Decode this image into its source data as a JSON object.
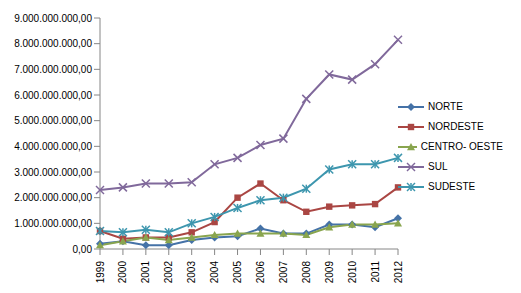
{
  "chart_data": {
    "type": "line",
    "categories": [
      "1999",
      "2000",
      "2001",
      "2002",
      "2003",
      "2004",
      "2005",
      "2006",
      "2007",
      "2008",
      "2009",
      "2010",
      "2011",
      "2012"
    ],
    "series": [
      {
        "name": "NORTE",
        "color": "#4572A7",
        "marker": "diamond",
        "values": [
          200000000,
          300000000,
          150000000,
          150000000,
          350000000,
          450000000,
          500000000,
          800000000,
          600000000,
          600000000,
          950000000,
          950000000,
          850000000,
          1200000000
        ]
      },
      {
        "name": "NORDESTE",
        "color": "#AA4643",
        "marker": "square",
        "values": [
          700000000,
          400000000,
          450000000,
          450000000,
          650000000,
          1050000000,
          2000000000,
          2550000000,
          1900000000,
          1450000000,
          1650000000,
          1700000000,
          1750000000,
          2400000000
        ]
      },
      {
        "name": "CENTRO- OESTE",
        "color": "#89A54E",
        "marker": "triangle",
        "values": [
          150000000,
          300000000,
          450000000,
          350000000,
          450000000,
          550000000,
          600000000,
          600000000,
          600000000,
          550000000,
          850000000,
          950000000,
          950000000,
          1000000000
        ]
      },
      {
        "name": "SUL",
        "color": "#80699B",
        "marker": "x",
        "values": [
          2300000000,
          2400000000,
          2550000000,
          2550000000,
          2600000000,
          3300000000,
          3550000000,
          4050000000,
          4300000000,
          5850000000,
          6800000000,
          6600000000,
          7200000000,
          8150000000
        ]
      },
      {
        "name": "SUDESTE",
        "color": "#3D96AE",
        "marker": "star",
        "values": [
          700000000,
          650000000,
          750000000,
          650000000,
          1000000000,
          1250000000,
          1600000000,
          1900000000,
          2000000000,
          2350000000,
          3100000000,
          3300000000,
          3300000000,
          3550000000
        ]
      }
    ],
    "ylim": [
      0,
      9000000000
    ],
    "yticks": [
      {
        "value": 0,
        "label": "0,00"
      },
      {
        "value": 1000000000,
        "label": "1.000.000.000,00"
      },
      {
        "value": 2000000000,
        "label": "2.000.000.000,00"
      },
      {
        "value": 3000000000,
        "label": "3.000.000.000,00"
      },
      {
        "value": 4000000000,
        "label": "4.000.000.000,00"
      },
      {
        "value": 5000000000,
        "label": "5.000.000.000,00"
      },
      {
        "value": 6000000000,
        "label": "6.000.000.000,00"
      },
      {
        "value": 7000000000,
        "label": "7.000.000.000,00"
      },
      {
        "value": 8000000000,
        "label": "8.000.000.000,00"
      },
      {
        "value": 9000000000,
        "label": "9.000.000.000,00"
      }
    ],
    "grid": false,
    "legend": "right"
  }
}
